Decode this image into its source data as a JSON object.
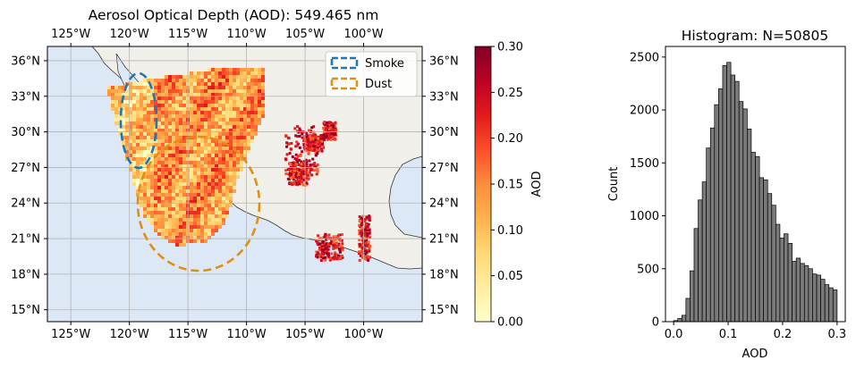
{
  "colors": {
    "ocean": "#dce8f5",
    "land": "#f1efea",
    "grid": "#b5b5b5",
    "smoke_edge": "#1f77b4",
    "dust_edge": "#e08f10",
    "hist_bar": "#7a7a7a",
    "colormap": [
      "#ffffcc",
      "#ffeda0",
      "#fed976",
      "#feb24c",
      "#fd8d3c",
      "#fc4e2a",
      "#e31a1c",
      "#bd0026",
      "#800026"
    ]
  },
  "map": {
    "title": "Aerosol Optical Depth (AOD): 549.465 nm",
    "lon_ticks": [
      "125°W",
      "120°W",
      "115°W",
      "110°W",
      "105°W",
      "100°W"
    ],
    "lat_ticks": [
      "36°N",
      "33°N",
      "30°N",
      "27°N",
      "24°N",
      "21°N",
      "18°N",
      "15°N"
    ],
    "legend": [
      {
        "label": "Smoke",
        "color": "#1f77b4"
      },
      {
        "label": "Dust",
        "color": "#e08f10"
      }
    ]
  },
  "colorbar": {
    "label": "AOD",
    "ticks": [
      "0.00",
      "0.05",
      "0.10",
      "0.15",
      "0.20",
      "0.25",
      "0.30"
    ]
  },
  "chart_data": [
    {
      "type": "heatmap",
      "title": "Aerosol Optical Depth (AOD): 549.465 nm",
      "xlabel": "",
      "ylabel": "",
      "xlim": [
        -127,
        -95
      ],
      "ylim": [
        14,
        37.2
      ],
      "x_ticks": [
        "125°W",
        "120°W",
        "115°W",
        "110°W",
        "105°W",
        "100°W"
      ],
      "y_ticks": [
        "36°N",
        "33°N",
        "30°N",
        "27°N",
        "24°N",
        "21°N",
        "18°N",
        "15°N"
      ],
      "colorbar_label": "AOD",
      "colorbar_range": [
        0.0,
        0.3
      ],
      "grid": true,
      "legend_position": "top-right",
      "annotations": [
        {
          "label": "Smoke",
          "shape": "ellipse",
          "center": [
            -118.6,
            30.3
          ],
          "radius_lon": 1.5,
          "radius_lat": 3.1
        },
        {
          "label": "Dust",
          "shape": "ellipse",
          "center": [
            -113.2,
            23.6
          ],
          "radius_lon": 5.2,
          "radius_lat": 5.0
        }
      ]
    },
    {
      "type": "bar",
      "title": "Histogram: N=50805",
      "xlabel": "AOD",
      "ylabel": "Count",
      "xlim": [
        -0.015,
        0.315
      ],
      "ylim": [
        0,
        2600
      ],
      "x_ticks": [
        "0.0",
        "0.1",
        "0.2",
        "0.3"
      ],
      "y_ticks": [
        "0",
        "500",
        "1000",
        "1500",
        "2000",
        "2500"
      ],
      "bin_width": 0.0075,
      "bin_starts": [
        0.0,
        0.0075,
        0.015,
        0.0225,
        0.03,
        0.0375,
        0.045,
        0.0525,
        0.06,
        0.0675,
        0.075,
        0.0825,
        0.09,
        0.0975,
        0.105,
        0.1125,
        0.12,
        0.1275,
        0.135,
        0.1425,
        0.15,
        0.1575,
        0.165,
        0.1725,
        0.18,
        0.1875,
        0.195,
        0.2025,
        0.21,
        0.2175,
        0.225,
        0.2325,
        0.24,
        0.2475,
        0.255,
        0.2625,
        0.27,
        0.2775,
        0.285,
        0.2925
      ],
      "values": [
        10,
        30,
        60,
        220,
        480,
        880,
        1150,
        1320,
        1640,
        1830,
        2050,
        2200,
        2420,
        2450,
        2330,
        2270,
        2080,
        2010,
        1820,
        1600,
        1560,
        1360,
        1340,
        1210,
        1100,
        920,
        790,
        830,
        740,
        570,
        600,
        550,
        530,
        500,
        450,
        440,
        400,
        350,
        320,
        300
      ]
    }
  ]
}
